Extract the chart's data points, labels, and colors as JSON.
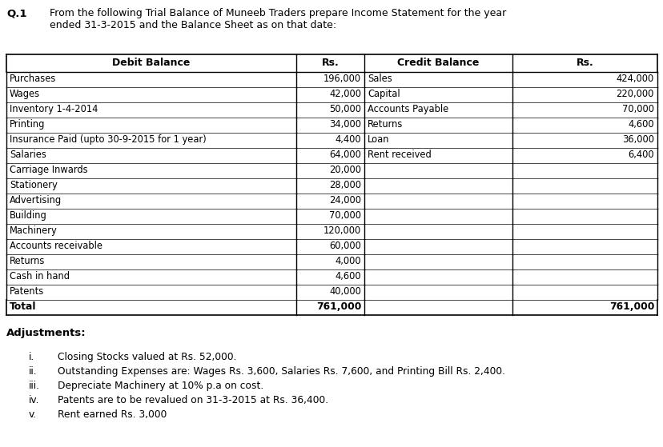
{
  "title_q": "Q.1",
  "title_text": "From the following Trial Balance of Muneeb Traders prepare Income Statement for the year\nended 31-3-2015 and the Balance Sheet as on that date:",
  "debit_items": [
    [
      "Purchases",
      "196,000"
    ],
    [
      "Wages",
      "42,000"
    ],
    [
      "Inventory 1-4-2014",
      "50,000"
    ],
    [
      "Printing",
      "34,000"
    ],
    [
      "Insurance Paid (upto 30-9-2015 for 1 year)",
      "4,400"
    ],
    [
      "Salaries",
      "64,000"
    ],
    [
      "Carriage Inwards",
      "20,000"
    ],
    [
      "Stationery",
      "28,000"
    ],
    [
      "Advertising",
      "24,000"
    ],
    [
      "Building",
      "70,000"
    ],
    [
      "Machinery",
      "120,000"
    ],
    [
      "Accounts receivable",
      "60,000"
    ],
    [
      "Returns",
      "4,000"
    ],
    [
      "Cash in hand",
      "4,600"
    ],
    [
      "Patents",
      "40,000"
    ]
  ],
  "credit_items": [
    [
      "Sales",
      "424,000"
    ],
    [
      "Capital",
      "220,000"
    ],
    [
      "Accounts Payable",
      "70,000"
    ],
    [
      "Returns",
      "4,600"
    ],
    [
      "Loan",
      "36,000"
    ],
    [
      "Rent received",
      "6,400"
    ],
    [
      "",
      ""
    ],
    [
      "",
      ""
    ],
    [
      "",
      ""
    ],
    [
      "",
      ""
    ],
    [
      "",
      ""
    ],
    [
      "",
      ""
    ],
    [
      "",
      ""
    ],
    [
      "",
      ""
    ],
    [
      "",
      ""
    ]
  ],
  "total_debit": "761,000",
  "total_credit": "761,000",
  "adjustments_title": "Adjustments:",
  "adjustments": [
    [
      "i.",
      "Closing Stocks valued at Rs. 52,000."
    ],
    [
      "ii.",
      "Outstanding Expenses are: Wages Rs. 3,600, Salaries Rs. 7,600, and Printing Bill Rs. 2,400."
    ],
    [
      "iii.",
      "Depreciate Machinery at 10% p.a on cost."
    ],
    [
      "iv.",
      "Patents are to be revalued on 31-3-2015 at Rs. 36,400."
    ],
    [
      "v.",
      "Rent earned Rs. 3,000"
    ]
  ],
  "bg_color": "#ffffff",
  "fig_width": 8.29,
  "fig_height": 5.59,
  "dpi": 100
}
